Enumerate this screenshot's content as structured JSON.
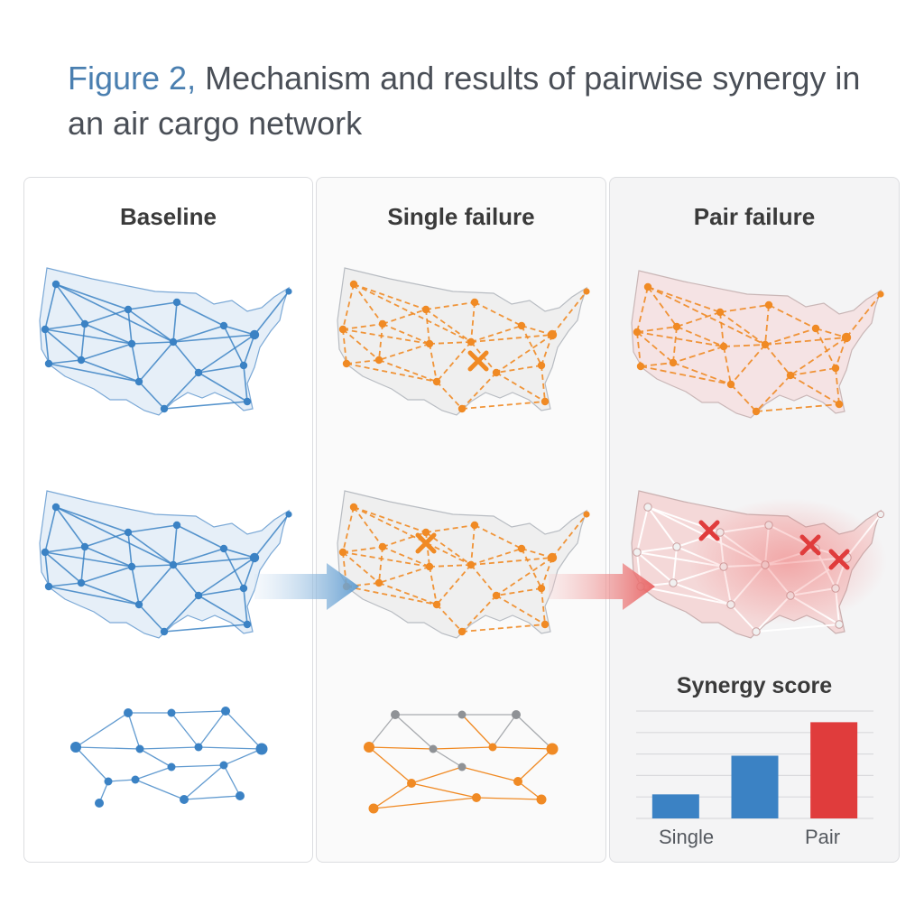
{
  "figure": {
    "label": "Figure 2,",
    "title": "Mechanism and results of pairwise synergy in an air cargo network"
  },
  "panels": {
    "baseline": {
      "title": "Baseline"
    },
    "single": {
      "title": "Single failure"
    },
    "pair": {
      "title": "Pair failure"
    }
  },
  "colors": {
    "baseline": "#3b82c4",
    "single_failure": "#f08a24",
    "pair_failure": "#e03c3c",
    "gray_node": "#8f9296"
  },
  "chart_data": {
    "type": "bar",
    "title": "Synergy score",
    "categories": [
      "Single",
      "",
      "Pair"
    ],
    "visible_category_labels": [
      "Single",
      "Pair"
    ],
    "series": [
      {
        "name": "Synergy score",
        "values": [
          2.8,
          7.3,
          11.2
        ],
        "colors": [
          "#3b82c4",
          "#3b82c4",
          "#e03c3c"
        ]
      }
    ],
    "ylim": [
      0,
      12.5
    ],
    "grid": true,
    "xlabel": "",
    "ylabel": ""
  }
}
